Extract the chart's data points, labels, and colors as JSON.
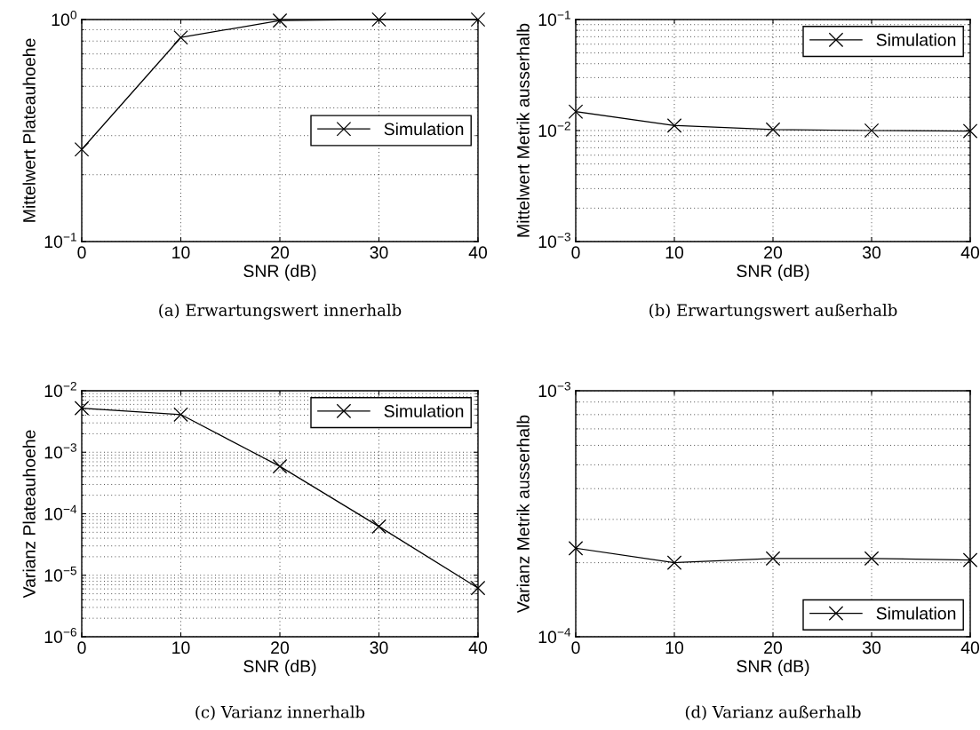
{
  "chart_data": [
    {
      "type": "line",
      "xlabel": "SNR (dB)",
      "ylabel": "Mittelwert Plateauhoehe",
      "annotations": [
        "(a) Erwartungswert innerhalb"
      ],
      "x": [
        0,
        10,
        20,
        30,
        40
      ],
      "series": [
        {
          "name": "Simulation",
          "color": "#000000",
          "values": [
            0.26,
            0.83,
            0.99,
            1.0,
            1.0
          ]
        }
      ],
      "xlim": [
        0,
        40
      ],
      "xticks": [
        0,
        10,
        20,
        30,
        40
      ],
      "ylim": [
        0.1,
        1
      ],
      "yticks": [
        {
          "value": 0.1,
          "label": "10$^{−1}$"
        },
        {
          "value": 1,
          "label": "10$^{0}$"
        }
      ],
      "log": "y",
      "grid": true,
      "legend": "center right",
      "marker": "cross",
      "line_style": "solid"
    },
    {
      "type": "line",
      "xlabel": "SNR (dB)",
      "ylabel": "Mittelwert Metrik ausserhalb",
      "annotations": [
        "(b) Erwartungswert außerhalb"
      ],
      "x": [
        0,
        10,
        20,
        30,
        40
      ],
      "series": [
        {
          "name": "Simulation",
          "color": "#000000",
          "values": [
            0.0148,
            0.0111,
            0.0102,
            0.01,
            0.0099
          ]
        }
      ],
      "xlim": [
        0,
        40
      ],
      "xticks": [
        0,
        10,
        20,
        30,
        40
      ],
      "ylim": [
        0.001,
        0.1
      ],
      "yticks": [
        {
          "value": 0.001,
          "label": "10$^{−3}$"
        },
        {
          "value": 0.01,
          "label": "10$^{−2}$"
        },
        {
          "value": 0.1,
          "label": "10$^{−1}$"
        }
      ],
      "log": "y",
      "grid": true,
      "legend": "top right",
      "marker": "cross",
      "line_style": "solid"
    },
    {
      "type": "line",
      "xlabel": "SNR (dB)",
      "ylabel": "Varianz Plateauhoehe",
      "annotations": [
        "(c) Varianz innerhalb"
      ],
      "x": [
        0,
        10,
        20,
        30,
        40
      ],
      "series": [
        {
          "name": "Simulation",
          "color": "#000000",
          "values": [
            0.0052,
            0.0041,
            0.00059,
            6.2e-05,
            6.2e-06
          ]
        }
      ],
      "xlim": [
        0,
        40
      ],
      "xticks": [
        0,
        10,
        20,
        30,
        40
      ],
      "ylim": [
        1e-06,
        0.01
      ],
      "yticks": [
        {
          "value": 1e-06,
          "label": "10$^{−6}$"
        },
        {
          "value": 1e-05,
          "label": "10$^{−5}$"
        },
        {
          "value": 0.0001,
          "label": "10$^{−4}$"
        },
        {
          "value": 0.001,
          "label": "10$^{−3}$"
        },
        {
          "value": 0.01,
          "label": "10$^{−2}$"
        }
      ],
      "log": "y",
      "grid": true,
      "legend": "top right",
      "marker": "cross",
      "line_style": "solid"
    },
    {
      "type": "line",
      "xlabel": "SNR (dB)",
      "ylabel": "Varianz Metrik ausserhalb",
      "annotations": [
        "(d) Varianz außerhalb"
      ],
      "x": [
        0,
        10,
        20,
        30,
        40
      ],
      "series": [
        {
          "name": "Simulation",
          "color": "#000000",
          "values": [
            0.000229,
            0.0002,
            0.000208,
            0.000208,
            0.000205
          ]
        }
      ],
      "xlim": [
        0,
        40
      ],
      "xticks": [
        0,
        10,
        20,
        30,
        40
      ],
      "ylim": [
        0.0001,
        0.001
      ],
      "yticks": [
        {
          "value": 0.0001,
          "label": "10$^{−4}$"
        },
        {
          "value": 0.001,
          "label": "10$^{−3}$"
        }
      ],
      "log": "y",
      "grid": true,
      "legend": "bottom right",
      "marker": "cross",
      "line_style": "solid"
    }
  ]
}
